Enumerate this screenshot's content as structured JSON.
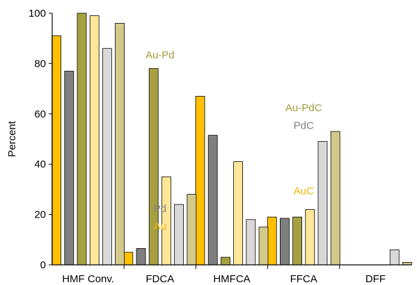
{
  "chart_data": {
    "type": "bar",
    "title": "",
    "xlabel": "",
    "ylabel": "Percent",
    "ylim": [
      0,
      100
    ],
    "yticks": [
      0,
      20,
      40,
      60,
      80,
      100
    ],
    "grid": false,
    "categories": [
      "HMF Conv.",
      "FDCA",
      "HMFCA",
      "FFCA",
      "DFF"
    ],
    "series": [
      {
        "color": "#FFC000",
        "values": [
          91,
          5,
          67,
          19,
          0
        ]
      },
      {
        "color": "#7F7F7F",
        "values": [
          77,
          6.5,
          51.5,
          18.5,
          0
        ]
      },
      {
        "color": "#A6A040",
        "values": [
          100,
          78,
          3,
          19,
          0
        ]
      },
      {
        "color": "#FFE699",
        "values": [
          99,
          35,
          41,
          22,
          0
        ]
      },
      {
        "color": "#D9D9D9",
        "values": [
          86,
          24,
          18,
          49,
          6
        ]
      },
      {
        "color": "#D3C98A",
        "values": [
          96,
          28,
          15,
          53,
          1
        ]
      }
    ],
    "annotations": [
      {
        "text": "Au-Pd",
        "color": "#A39A3E",
        "category": 1,
        "value": 82
      },
      {
        "text": "Pd",
        "color": "#808080",
        "category": 1,
        "value": 21
      },
      {
        "text": "Au",
        "color": "#F2B705",
        "category": 1,
        "value": 14
      },
      {
        "text": "Au-PdC",
        "color": "#A39A3E",
        "category": 3,
        "value": 61
      },
      {
        "text": "PdC",
        "color": "#808080",
        "category": 3,
        "value": 54
      },
      {
        "text": "AuC",
        "color": "#F2B705",
        "category": 3,
        "value": 28
      }
    ]
  }
}
